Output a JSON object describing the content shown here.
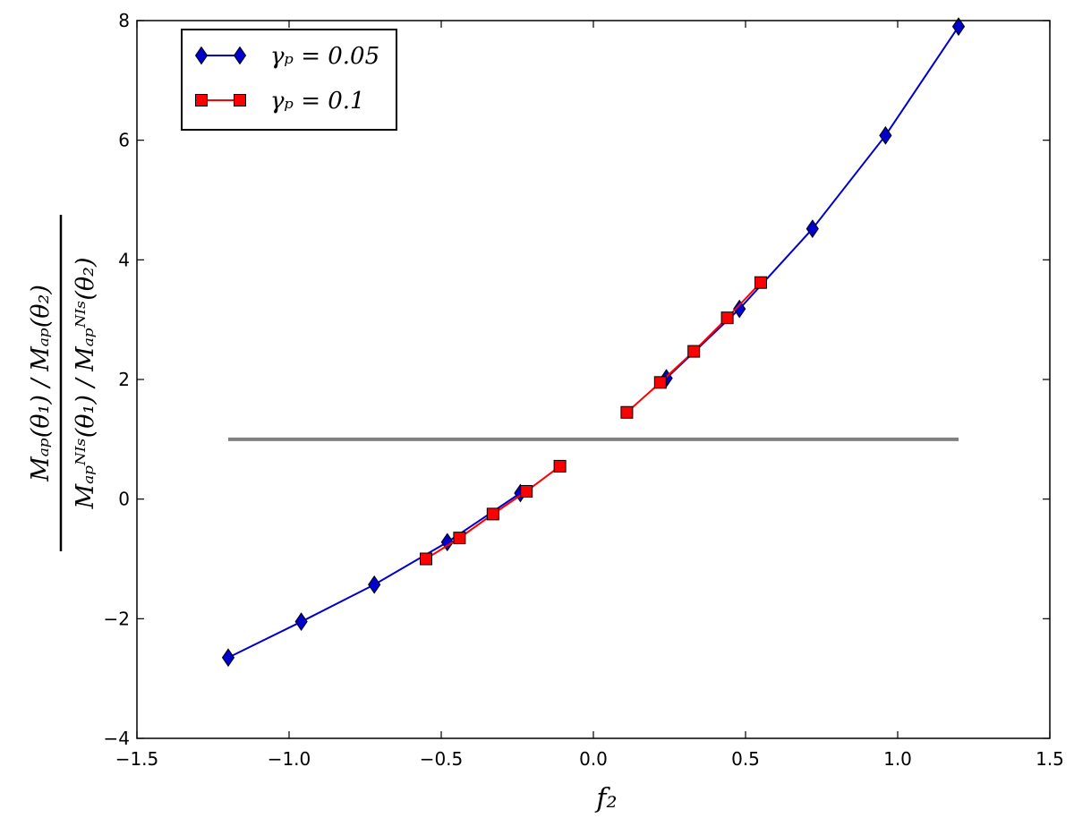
{
  "chart_data": {
    "type": "line",
    "xlim": [
      -1.5,
      1.5
    ],
    "ylim": [
      -4,
      8
    ],
    "x_ticks": [
      -1.5,
      -1.0,
      -0.5,
      0.0,
      0.5,
      1.0,
      1.5
    ],
    "x_tick_labels": [
      "−1.5",
      "−1.0",
      "−0.5",
      "0.0",
      "0.5",
      "1.0",
      "1.5"
    ],
    "y_ticks": [
      -4,
      -2,
      0,
      2,
      4,
      6,
      8
    ],
    "y_tick_labels": [
      "−4",
      "−2",
      "0",
      "2",
      "4",
      "6",
      "8"
    ],
    "xlabel": "f₂",
    "ylabel_numerator": "Mₐₚ(θ₁) / Mₐₚ(θ₂)",
    "ylabel_denominator": "Mₐₚᴺᴵˢ(θ₁) / Mₐₚᴺᴵˢ(θ₂)",
    "grid": false,
    "legend_position": "top-left",
    "reference_line": {
      "x": [
        -1.2,
        1.2
      ],
      "y": [
        1.0,
        1.0
      ],
      "color": "#808080"
    },
    "series": [
      {
        "name": "γₚ = 0.05",
        "color": "#0000cc",
        "marker": "diamond",
        "segments": [
          {
            "x": [
              -1.2,
              -0.96,
              -0.72,
              -0.48,
              -0.24
            ],
            "y": [
              -2.65,
              -2.05,
              -1.43,
              -0.72,
              0.1
            ]
          },
          {
            "x": [
              0.24,
              0.48,
              0.72,
              0.96,
              1.2
            ],
            "y": [
              2.02,
              3.18,
              4.52,
              6.08,
              7.9
            ]
          }
        ]
      },
      {
        "name": "γₚ = 0.1",
        "color": "#ff0000",
        "marker": "square",
        "segments": [
          {
            "x": [
              -0.55,
              -0.44,
              -0.33,
              -0.22,
              -0.11
            ],
            "y": [
              -1.0,
              -0.65,
              -0.25,
              0.13,
              0.55
            ]
          },
          {
            "x": [
              0.11,
              0.22,
              0.33,
              0.44,
              0.55
            ],
            "y": [
              1.45,
              1.95,
              2.47,
              3.03,
              3.62
            ]
          }
        ]
      }
    ]
  }
}
